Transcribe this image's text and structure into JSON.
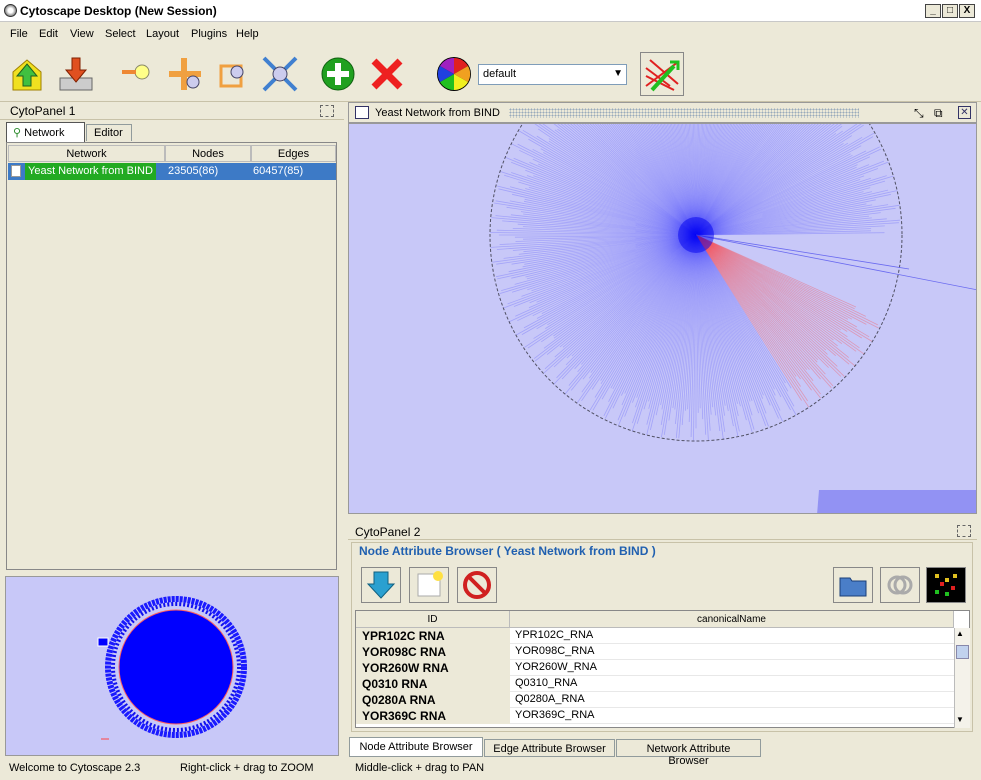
{
  "window": {
    "title": "Cytoscape Desktop (New Session)",
    "min": "_",
    "max": "□",
    "close": "X"
  },
  "menu": [
    "File",
    "Edit",
    "View",
    "Select",
    "Layout",
    "Plugins",
    "Help"
  ],
  "toolbar": {
    "icons": [
      "open-session-icon",
      "save-session-icon",
      "zoom-icon",
      "zoom-in-icon",
      "zoom-selected-icon",
      "zoom-fit-icon",
      "add-icon",
      "delete-icon",
      "vizmapper-icon",
      "layout-icon"
    ],
    "style_value": "default"
  },
  "cytopanel1": {
    "title": "CytoPanel 1",
    "tabs": [
      "Network",
      "Editor"
    ],
    "table": {
      "columns": [
        "Network",
        "Nodes",
        "Edges"
      ],
      "rows": [
        {
          "network": "Yeast Network from BIND",
          "nodes": "23505(86)",
          "edges": "60457(85)"
        }
      ]
    }
  },
  "network_view": {
    "title": "Yeast Network from BIND"
  },
  "cytopanel2": {
    "title": "CytoPanel 2",
    "browser_title": "Node Attribute Browser ( Yeast Network from BIND )",
    "columns": [
      "ID",
      "canonicalName"
    ],
    "rows": [
      {
        "id": "YPR102C  RNA",
        "cn": "YPR102C_RNA"
      },
      {
        "id": "YOR098C  RNA",
        "cn": "YOR098C_RNA"
      },
      {
        "id": "YOR260W  RNA",
        "cn": "YOR260W_RNA"
      },
      {
        "id": "Q0310  RNA",
        "cn": "Q0310_RNA"
      },
      {
        "id": "Q0280A  RNA",
        "cn": "Q0280A_RNA"
      },
      {
        "id": "YOR369C  RNA",
        "cn": "YOR369C_RNA"
      }
    ],
    "bottom_tabs": [
      "Node Attribute Browser",
      "Edge Attribute Browser",
      "Network Attribute Browser"
    ]
  },
  "status": {
    "welcome": "Welcome to Cytoscape 2.3",
    "hint1": "Right-click + drag  to  ZOOM",
    "hint2": "Middle-click + drag  to  PAN"
  },
  "colors": {
    "accent": "#3d7ac6",
    "network_bg": "#c8c8f8",
    "edges": "#2020ff",
    "selected_edges": "#ff4040",
    "selected_row": "#22aa22"
  }
}
